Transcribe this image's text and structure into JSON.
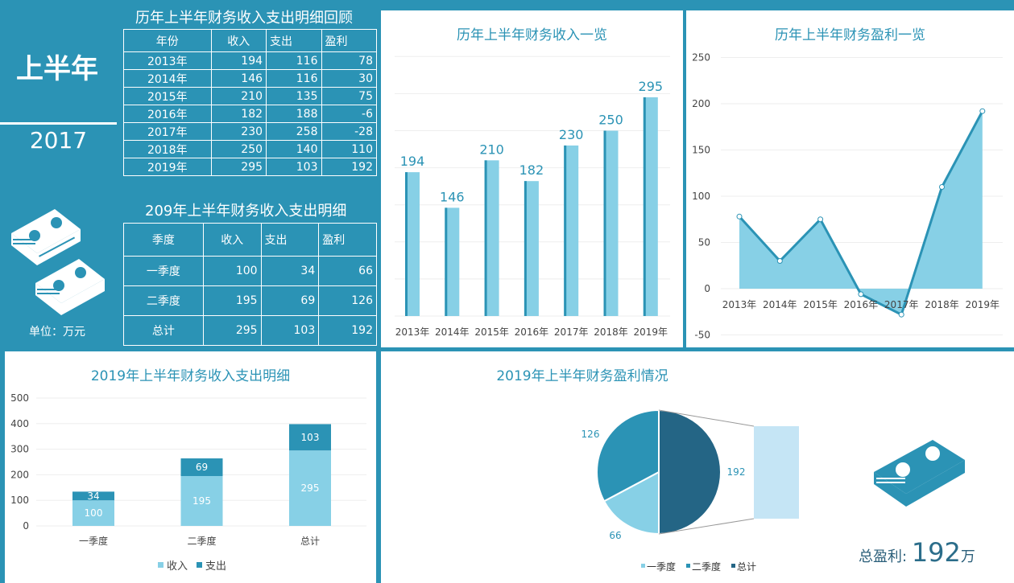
{
  "left": {
    "big_label": "上半年",
    "year": "2017",
    "unit": "单位：万元",
    "history_title": "历年上半年财务收入支出明细回顾",
    "headers": [
      "年份",
      "收入",
      "支出",
      "盈利"
    ],
    "history_rows": [
      [
        "2013年",
        "194",
        "116",
        "78"
      ],
      [
        "2014年",
        "146",
        "116",
        "30"
      ],
      [
        "2015年",
        "210",
        "135",
        "75"
      ],
      [
        "2016年",
        "182",
        "188",
        "-6"
      ],
      [
        "2017年",
        "230",
        "258",
        "-28"
      ],
      [
        "2018年",
        "250",
        "140",
        "110"
      ],
      [
        "2019年",
        "295",
        "103",
        "192"
      ]
    ],
    "detail_title": "209年上半年财务收入支出明细",
    "detail_headers": [
      "季度",
      "收入",
      "支出",
      "盈利"
    ],
    "detail_rows": [
      [
        "一季度",
        "100",
        "34",
        "66"
      ],
      [
        "二季度",
        "195",
        "69",
        "126"
      ],
      [
        "总计",
        "295",
        "103",
        "192"
      ]
    ]
  },
  "colors": {
    "bg": "#2b93b5",
    "light": "#87d0e6",
    "mid": "#2b93b5",
    "dark": "#246585",
    "pale": "#c5e5f5"
  },
  "chart_data": [
    {
      "type": "bar",
      "title": "历年上半年财务收入一览",
      "categories": [
        "2013年",
        "2014年",
        "2015年",
        "2016年",
        "2017年",
        "2018年",
        "2019年"
      ],
      "values": [
        194,
        146,
        210,
        182,
        230,
        250,
        295
      ],
      "ylim": [
        0,
        350
      ],
      "grid": true
    },
    {
      "type": "area",
      "title": "历年上半年财务盈利一览",
      "categories": [
        "2013年",
        "2014年",
        "2015年",
        "2016年",
        "2017年",
        "2018年",
        "2019年"
      ],
      "values": [
        78,
        30,
        75,
        -6,
        -28,
        110,
        192
      ],
      "ylim": [
        -50,
        250
      ],
      "yticks": [
        -50,
        0,
        50,
        100,
        150,
        200,
        250
      ],
      "grid": true
    },
    {
      "type": "bar",
      "stacked": true,
      "title": "2019年上半年财务收入支出明细",
      "categories": [
        "一季度",
        "二季度",
        "总计"
      ],
      "series": [
        {
          "name": "收入",
          "values": [
            100,
            195,
            295
          ]
        },
        {
          "name": "支出",
          "values": [
            34,
            69,
            103
          ]
        }
      ],
      "ylim": [
        0,
        500
      ],
      "yticks": [
        0,
        100,
        200,
        300,
        400,
        500
      ],
      "legend": "bottom"
    },
    {
      "type": "pie",
      "subtype": "bar-of-pie",
      "title": "2019年上半年财务盈利情况",
      "categories": [
        "一季度",
        "二季度",
        "总计"
      ],
      "values": [
        66,
        126,
        192
      ],
      "legend": "bottom"
    }
  ],
  "summary": {
    "label": "总盈利:",
    "value": "192",
    "unit": "万"
  }
}
